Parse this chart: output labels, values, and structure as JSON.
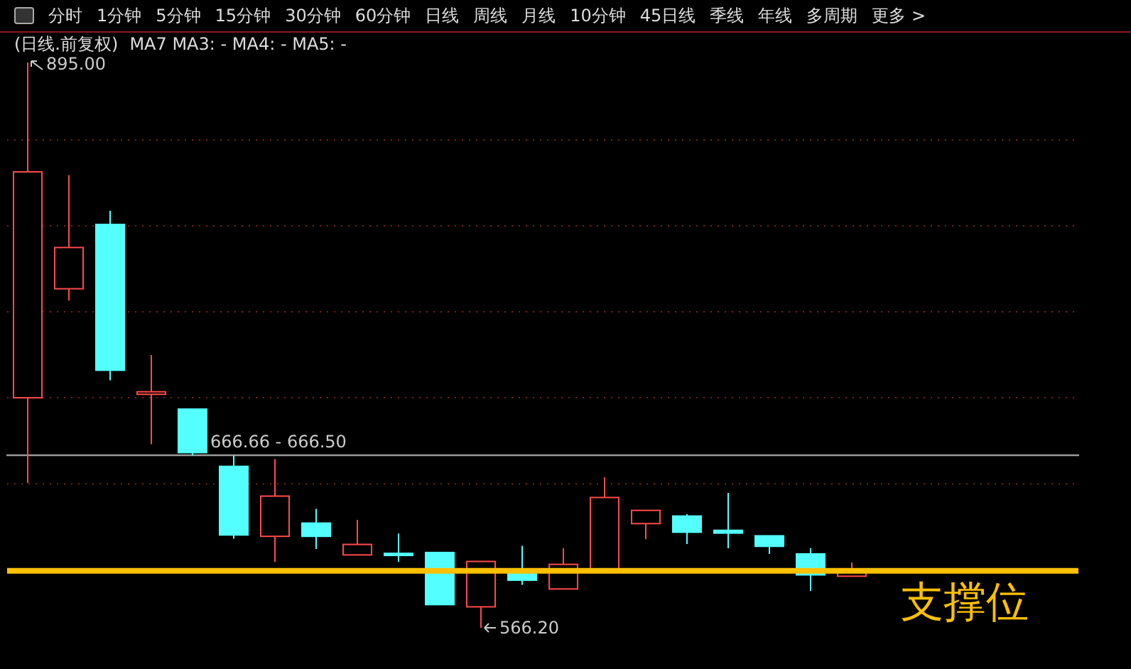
{
  "chart_data": {
    "type": "candlestick",
    "title": "(日线.前复权)",
    "subtitle": "MA7  MA3: -  MA4: -  MA5: -",
    "categories": [
      null,
      null,
      null,
      null,
      null,
      null,
      null,
      null,
      null,
      null,
      null,
      null,
      null,
      null,
      null,
      null,
      null,
      null,
      null,
      null,
      null,
      null,
      null,
      null,
      null,
      null
    ],
    "ohlc": [
      [
        700.0,
        895.0,
        650.5,
        831.4
      ],
      [
        763.4,
        829.5,
        756.5,
        787.4
      ],
      [
        800.8,
        808.8,
        710.2,
        716.0
      ],
      [
        702.0,
        724.8,
        673.0,
        703.5
      ],
      [
        693.4,
        693.4,
        666.5,
        668.1
      ],
      [
        660.1,
        666.4,
        618.0,
        620.2
      ],
      [
        619.4,
        664.3,
        604.5,
        642.8
      ],
      [
        627.1,
        635.4,
        612.0,
        619.4
      ],
      [
        608.6,
        629.0,
        608.6,
        614.7
      ],
      [
        609.5,
        621.0,
        604.5,
        608.3
      ],
      [
        610.0,
        610.0,
        579.7,
        579.7
      ],
      [
        578.4,
        604.8,
        566.2,
        604.8
      ],
      [
        600.0,
        613.9,
        591.2,
        593.9
      ],
      [
        588.8,
        612.5,
        588.8,
        603.1
      ],
      [
        599.3,
        653.8,
        599.3,
        642.0
      ],
      [
        626.8,
        634.5,
        617.7,
        634.5
      ],
      [
        631.2,
        632.3,
        614.9,
        621.8
      ],
      [
        622.9,
        644.7,
        612.5,
        621.3
      ],
      [
        619.7,
        619.7,
        609.2,
        613.6
      ],
      [
        609.2,
        612.5,
        587.7,
        597.0
      ],
      [
        596.2,
        604.2,
        596.2,
        600.3
      ],
      null,
      null,
      null,
      null,
      null
    ],
    "colors": [
      "#ff4a4a",
      "#ff4a4a",
      "#54ffff",
      "#ff4a4a",
      "#54ffff",
      "#54ffff",
      "#ff4a4a",
      "#54ffff",
      "#ff4a4a",
      "#54ffff",
      "#54ffff",
      "#ff4a4a",
      "#54ffff",
      "#ff4a4a",
      "#ff4a4a",
      "#ff4a4a",
      "#54ffff",
      "#54ffff",
      "#54ffff",
      "#54ffff",
      "#ff4a4a",
      null,
      null,
      null,
      null,
      null
    ],
    "yticks": [
      {
        "value": 600,
        "label": null
      },
      {
        "value": 650,
        "label": null
      },
      {
        "value": 700,
        "label": null
      },
      {
        "value": 750,
        "label": null
      },
      {
        "value": 800,
        "label": null
      },
      {
        "value": 850,
        "label": null
      }
    ],
    "grid": "y",
    "bands": [
      {
        "axis": "y",
        "from": 666.5,
        "to": 666.66,
        "label": "666.66 - 666.50",
        "color": "#9a9a9a"
      }
    ],
    "ref_lines": [
      {
        "axis": "y",
        "value": 599.3,
        "label": "支撑位",
        "color": "#ffc000"
      }
    ],
    "annotations": [
      "分时",
      "1分钟",
      "5分钟",
      "15分钟",
      "30分钟",
      "60分钟",
      "日线",
      "周线",
      "月线",
      "10分钟",
      "45日线",
      "季线",
      "年线",
      "多周期",
      "更多 >",
      "895.00",
      "566.20"
    ]
  }
}
